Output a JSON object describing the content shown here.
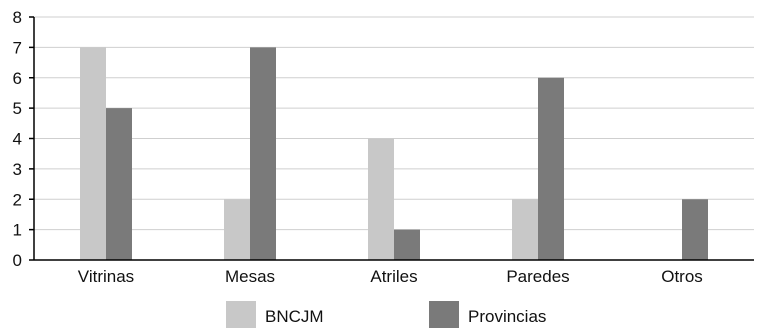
{
  "chart_data": {
    "type": "bar",
    "categories": [
      "Vitrinas",
      "Mesas",
      "Atriles",
      "Paredes",
      "Otros"
    ],
    "series": [
      {
        "name": "BNCJM",
        "values": [
          7,
          2,
          4,
          2,
          0
        ],
        "color": "#c8c8c8"
      },
      {
        "name": "Provincias",
        "values": [
          5,
          7,
          1,
          6,
          2
        ],
        "color": "#7a7a7a"
      }
    ],
    "ylim": [
      0,
      8
    ],
    "yticks": [
      0,
      1,
      2,
      3,
      4,
      5,
      6,
      7,
      8
    ],
    "grid": true,
    "legend_position": "bottom"
  }
}
